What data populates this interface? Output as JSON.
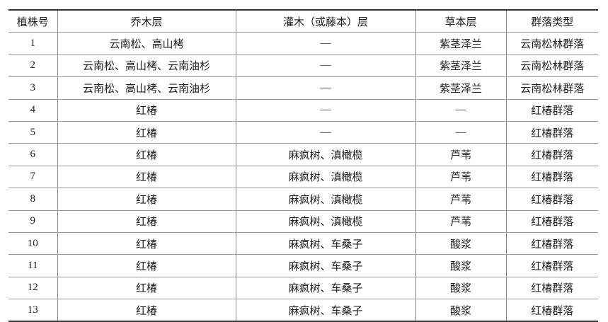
{
  "table": {
    "headers": [
      "植株号",
      "乔木层",
      "灌木（或藤本）层",
      "草本层",
      "群落类型"
    ],
    "rows": [
      [
        "1",
        "云南松、高山栲",
        "—",
        "紫茎泽兰",
        "云南松林群落"
      ],
      [
        "2",
        "云南松、高山栲、云南油杉",
        "—",
        "紫茎泽兰",
        "云南松林群落"
      ],
      [
        "3",
        "云南松、高山栲、云南油杉",
        "—",
        "紫茎泽兰",
        "云南松林群落"
      ],
      [
        "4",
        "红椿",
        "—",
        "—",
        "红椿群落"
      ],
      [
        "5",
        "红椿",
        "—",
        "—",
        "红椿群落"
      ],
      [
        "6",
        "红椿",
        "麻疯树、滇橄榄",
        "芦苇",
        "红椿群落"
      ],
      [
        "7",
        "红椿",
        "麻疯树、滇橄榄",
        "芦苇",
        "红椿群落"
      ],
      [
        "8",
        "红椿",
        "麻疯树、滇橄榄",
        "芦苇",
        "红椿群落"
      ],
      [
        "9",
        "红椿",
        "麻疯树、滇橄榄",
        "芦苇",
        "红椿群落"
      ],
      [
        "10",
        "红椿",
        "麻疯树、车桑子",
        "酸浆",
        "红椿群落"
      ],
      [
        "11",
        "红椿",
        "麻疯树、车桑子",
        "酸浆",
        "红椿群落"
      ],
      [
        "12",
        "红椿",
        "麻疯树、车桑子",
        "酸浆",
        "红椿群落"
      ],
      [
        "13",
        "红椿",
        "麻疯树、车桑子",
        "酸浆",
        "红椿群落"
      ]
    ]
  }
}
